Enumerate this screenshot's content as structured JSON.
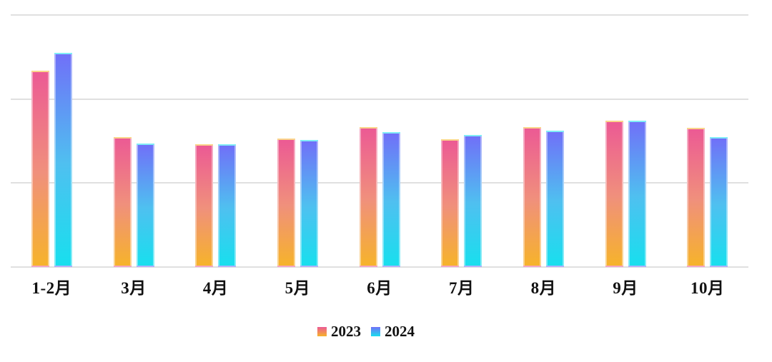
{
  "chart_data": {
    "type": "bar",
    "title": "",
    "xlabel": "",
    "ylabel": "",
    "categories": [
      "1-2月",
      "3月",
      "4月",
      "5月",
      "6月",
      "7月",
      "8月",
      "9月",
      "10月"
    ],
    "series": [
      {
        "name": "2023",
        "values": [
          2.34,
          1.55,
          1.46,
          1.53,
          1.67,
          1.52,
          1.67,
          1.74,
          1.66
        ],
        "gradient": {
          "top": "#ec5a94",
          "mid": "#f0907c",
          "bottom": "#f6b32b"
        }
      },
      {
        "name": "2024",
        "values": [
          2.55,
          1.47,
          1.46,
          1.51,
          1.61,
          1.57,
          1.62,
          1.74,
          1.55
        ],
        "gradient": {
          "top": "#7070f8",
          "mid": "#4fc0f0",
          "bottom": "#18dfee"
        }
      }
    ],
    "ylim": [
      0,
      3
    ],
    "grid": true,
    "gridline_step": 1,
    "gridline_color": "#e0e0e0",
    "legend_position": "bottom",
    "axis_label_color": "#111111",
    "background_color": "#ffffff"
  }
}
